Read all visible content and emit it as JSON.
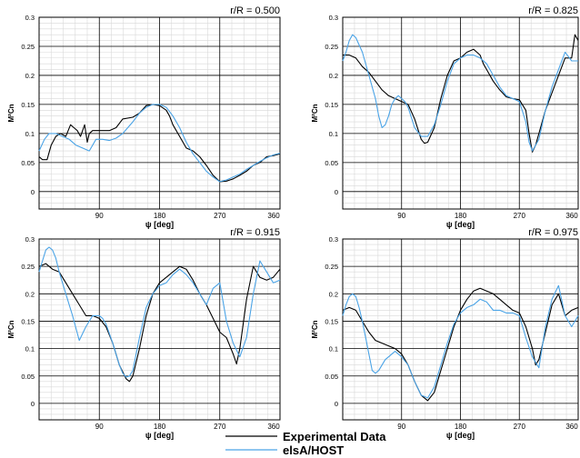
{
  "legend": {
    "experimental_label": "Experimental Data",
    "simulation_label": "elsA/HOST"
  },
  "colors": {
    "experimental": "#000000",
    "simulation": "#4aa3e6",
    "grid_major": "#000000",
    "grid_minor": "#d8d8d8"
  },
  "chart_data": [
    {
      "type": "line",
      "title": "r/R = 0.500",
      "xlabel": "ψ [deg]",
      "ylabel": "M²Cn",
      "xlim": [
        0,
        360
      ],
      "ylim": [
        -0.03,
        0.3
      ],
      "x_ticks": [
        "90",
        "180",
        "270",
        "360"
      ],
      "y_ticks": [
        "0",
        "0.05",
        "0.1",
        "0.15",
        "0.2",
        "0.25",
        "0.3"
      ],
      "grid": true,
      "series": [
        {
          "name": "Experimental Data",
          "x": [
            0,
            5,
            12,
            18,
            25,
            32,
            40,
            47,
            52,
            57,
            62,
            68,
            72,
            75,
            80,
            90,
            105,
            115,
            125,
            140,
            150,
            160,
            170,
            180,
            190,
            195,
            200,
            210,
            220,
            230,
            240,
            250,
            260,
            270,
            280,
            290,
            300,
            310,
            320,
            330,
            340,
            350,
            360
          ],
          "y": [
            0.06,
            0.055,
            0.055,
            0.08,
            0.095,
            0.1,
            0.095,
            0.115,
            0.11,
            0.105,
            0.095,
            0.115,
            0.085,
            0.1,
            0.105,
            0.105,
            0.105,
            0.11,
            0.125,
            0.128,
            0.135,
            0.148,
            0.15,
            0.148,
            0.14,
            0.13,
            0.115,
            0.095,
            0.075,
            0.07,
            0.06,
            0.045,
            0.028,
            0.017,
            0.018,
            0.022,
            0.028,
            0.035,
            0.045,
            0.05,
            0.06,
            0.062,
            0.065
          ]
        },
        {
          "name": "elsA/HOST",
          "x": [
            0,
            8,
            15,
            25,
            35,
            45,
            55,
            65,
            75,
            85,
            95,
            105,
            115,
            125,
            140,
            150,
            160,
            170,
            180,
            190,
            200,
            210,
            220,
            230,
            240,
            250,
            260,
            270,
            280,
            290,
            300,
            310,
            320,
            330,
            340,
            350,
            360
          ],
          "y": [
            0.07,
            0.09,
            0.1,
            0.1,
            0.095,
            0.09,
            0.08,
            0.075,
            0.07,
            0.09,
            0.09,
            0.088,
            0.092,
            0.1,
            0.12,
            0.135,
            0.145,
            0.15,
            0.15,
            0.145,
            0.13,
            0.11,
            0.085,
            0.065,
            0.05,
            0.035,
            0.025,
            0.017,
            0.02,
            0.025,
            0.03,
            0.038,
            0.045,
            0.052,
            0.058,
            0.063,
            0.066
          ]
        }
      ]
    },
    {
      "type": "line",
      "title": "r/R = 0.825",
      "xlabel": "ψ [deg]",
      "ylabel": "M²Cn",
      "xlim": [
        0,
        360
      ],
      "ylim": [
        -0.03,
        0.3
      ],
      "x_ticks": [
        "90",
        "180",
        "270",
        "360"
      ],
      "y_ticks": [
        "0",
        "0.05",
        "0.1",
        "0.15",
        "0.2",
        "0.25",
        "0.3"
      ],
      "grid": true,
      "series": [
        {
          "name": "Experimental Data",
          "x": [
            0,
            10,
            20,
            30,
            40,
            50,
            60,
            70,
            80,
            90,
            100,
            110,
            120,
            125,
            130,
            140,
            150,
            160,
            170,
            180,
            190,
            200,
            210,
            215,
            220,
            230,
            240,
            250,
            260,
            270,
            280,
            285,
            290,
            295,
            300,
            310,
            320,
            330,
            340,
            350,
            355,
            360
          ],
          "y": [
            0.235,
            0.235,
            0.23,
            0.215,
            0.205,
            0.19,
            0.175,
            0.165,
            0.16,
            0.155,
            0.15,
            0.125,
            0.09,
            0.083,
            0.085,
            0.11,
            0.16,
            0.2,
            0.225,
            0.23,
            0.24,
            0.245,
            0.235,
            0.22,
            0.21,
            0.19,
            0.175,
            0.163,
            0.16,
            0.158,
            0.14,
            0.1,
            0.068,
            0.08,
            0.1,
            0.14,
            0.17,
            0.2,
            0.23,
            0.23,
            0.27,
            0.26
          ]
        },
        {
          "name": "elsA/HOST",
          "x": [
            0,
            5,
            10,
            15,
            20,
            30,
            40,
            50,
            55,
            60,
            65,
            70,
            75,
            80,
            85,
            90,
            95,
            100,
            110,
            120,
            130,
            140,
            150,
            160,
            170,
            180,
            190,
            200,
            210,
            220,
            230,
            240,
            250,
            260,
            270,
            280,
            285,
            290,
            300,
            310,
            320,
            330,
            340,
            350,
            360
          ],
          "y": [
            0.225,
            0.24,
            0.26,
            0.27,
            0.265,
            0.24,
            0.2,
            0.16,
            0.13,
            0.11,
            0.115,
            0.13,
            0.15,
            0.16,
            0.165,
            0.16,
            0.155,
            0.145,
            0.11,
            0.095,
            0.095,
            0.115,
            0.15,
            0.19,
            0.22,
            0.23,
            0.235,
            0.235,
            0.23,
            0.22,
            0.2,
            0.18,
            0.165,
            0.16,
            0.155,
            0.12,
            0.085,
            0.07,
            0.09,
            0.14,
            0.18,
            0.21,
            0.24,
            0.225,
            0.225
          ]
        }
      ]
    },
    {
      "type": "line",
      "title": "r/R = 0.915",
      "xlabel": "ψ [deg]",
      "ylabel": "M²Cn",
      "xlim": [
        0,
        360
      ],
      "ylim": [
        -0.03,
        0.3
      ],
      "x_ticks": [
        "90",
        "180",
        "270",
        "360"
      ],
      "y_ticks": [
        "0",
        "0.05",
        "0.1",
        "0.15",
        "0.2",
        "0.25",
        "0.3"
      ],
      "grid": true,
      "series": [
        {
          "name": "Experimental Data",
          "x": [
            0,
            10,
            20,
            30,
            40,
            50,
            60,
            70,
            80,
            90,
            100,
            110,
            120,
            130,
            135,
            140,
            150,
            160,
            170,
            180,
            190,
            200,
            210,
            220,
            230,
            240,
            250,
            260,
            270,
            280,
            290,
            295,
            300,
            310,
            320,
            330,
            340,
            350,
            360
          ],
          "y": [
            0.25,
            0.255,
            0.245,
            0.24,
            0.22,
            0.2,
            0.18,
            0.16,
            0.16,
            0.155,
            0.14,
            0.11,
            0.07,
            0.045,
            0.04,
            0.05,
            0.1,
            0.16,
            0.2,
            0.22,
            0.23,
            0.24,
            0.25,
            0.245,
            0.225,
            0.2,
            0.18,
            0.155,
            0.13,
            0.12,
            0.09,
            0.072,
            0.1,
            0.19,
            0.25,
            0.23,
            0.225,
            0.23,
            0.245
          ]
        },
        {
          "name": "elsA/HOST",
          "x": [
            0,
            5,
            10,
            15,
            20,
            25,
            30,
            40,
            50,
            60,
            70,
            80,
            90,
            95,
            100,
            110,
            120,
            125,
            130,
            135,
            140,
            150,
            160,
            170,
            180,
            190,
            200,
            210,
            220,
            230,
            240,
            250,
            260,
            270,
            280,
            290,
            300,
            310,
            320,
            330,
            340,
            350,
            360
          ],
          "y": [
            0.24,
            0.26,
            0.28,
            0.285,
            0.28,
            0.265,
            0.24,
            0.2,
            0.16,
            0.115,
            0.14,
            0.16,
            0.16,
            0.155,
            0.145,
            0.11,
            0.07,
            0.055,
            0.048,
            0.05,
            0.06,
            0.12,
            0.175,
            0.2,
            0.215,
            0.22,
            0.235,
            0.245,
            0.235,
            0.22,
            0.2,
            0.18,
            0.21,
            0.22,
            0.15,
            0.11,
            0.085,
            0.12,
            0.2,
            0.26,
            0.24,
            0.22,
            0.225
          ]
        }
      ]
    },
    {
      "type": "line",
      "title": "r/R = 0.975",
      "xlabel": "ψ [deg]",
      "ylabel": "M²Cn",
      "xlim": [
        0,
        360
      ],
      "ylim": [
        -0.03,
        0.3
      ],
      "x_ticks": [
        "90",
        "180",
        "270",
        "360"
      ],
      "y_ticks": [
        "0",
        "0.05",
        "0.1",
        "0.15",
        "0.2",
        "0.25",
        "0.3"
      ],
      "grid": true,
      "series": [
        {
          "name": "Experimental Data",
          "x": [
            0,
            10,
            20,
            30,
            40,
            50,
            60,
            70,
            80,
            90,
            100,
            110,
            120,
            130,
            140,
            150,
            160,
            170,
            180,
            190,
            200,
            210,
            220,
            230,
            240,
            250,
            260,
            270,
            280,
            290,
            295,
            300,
            310,
            320,
            330,
            340,
            350,
            360
          ],
          "y": [
            0.17,
            0.175,
            0.17,
            0.15,
            0.13,
            0.115,
            0.11,
            0.105,
            0.1,
            0.09,
            0.07,
            0.04,
            0.015,
            0.005,
            0.02,
            0.06,
            0.1,
            0.14,
            0.17,
            0.19,
            0.205,
            0.21,
            0.205,
            0.2,
            0.19,
            0.18,
            0.17,
            0.165,
            0.14,
            0.1,
            0.07,
            0.08,
            0.13,
            0.18,
            0.2,
            0.16,
            0.17,
            0.175
          ]
        },
        {
          "name": "elsA/HOST",
          "x": [
            0,
            5,
            10,
            15,
            20,
            25,
            30,
            35,
            40,
            45,
            50,
            55,
            60,
            65,
            70,
            75,
            80,
            90,
            100,
            110,
            120,
            130,
            140,
            150,
            160,
            170,
            180,
            190,
            200,
            210,
            220,
            230,
            240,
            250,
            260,
            270,
            280,
            290,
            300,
            310,
            320,
            330,
            340,
            350,
            360
          ],
          "y": [
            0.16,
            0.18,
            0.195,
            0.2,
            0.195,
            0.175,
            0.15,
            0.12,
            0.09,
            0.06,
            0.055,
            0.06,
            0.07,
            0.08,
            0.085,
            0.09,
            0.095,
            0.085,
            0.07,
            0.04,
            0.015,
            0.01,
            0.03,
            0.07,
            0.11,
            0.145,
            0.165,
            0.175,
            0.18,
            0.19,
            0.185,
            0.17,
            0.17,
            0.165,
            0.165,
            0.16,
            0.12,
            0.085,
            0.065,
            0.14,
            0.19,
            0.215,
            0.16,
            0.14,
            0.16
          ]
        }
      ]
    }
  ]
}
